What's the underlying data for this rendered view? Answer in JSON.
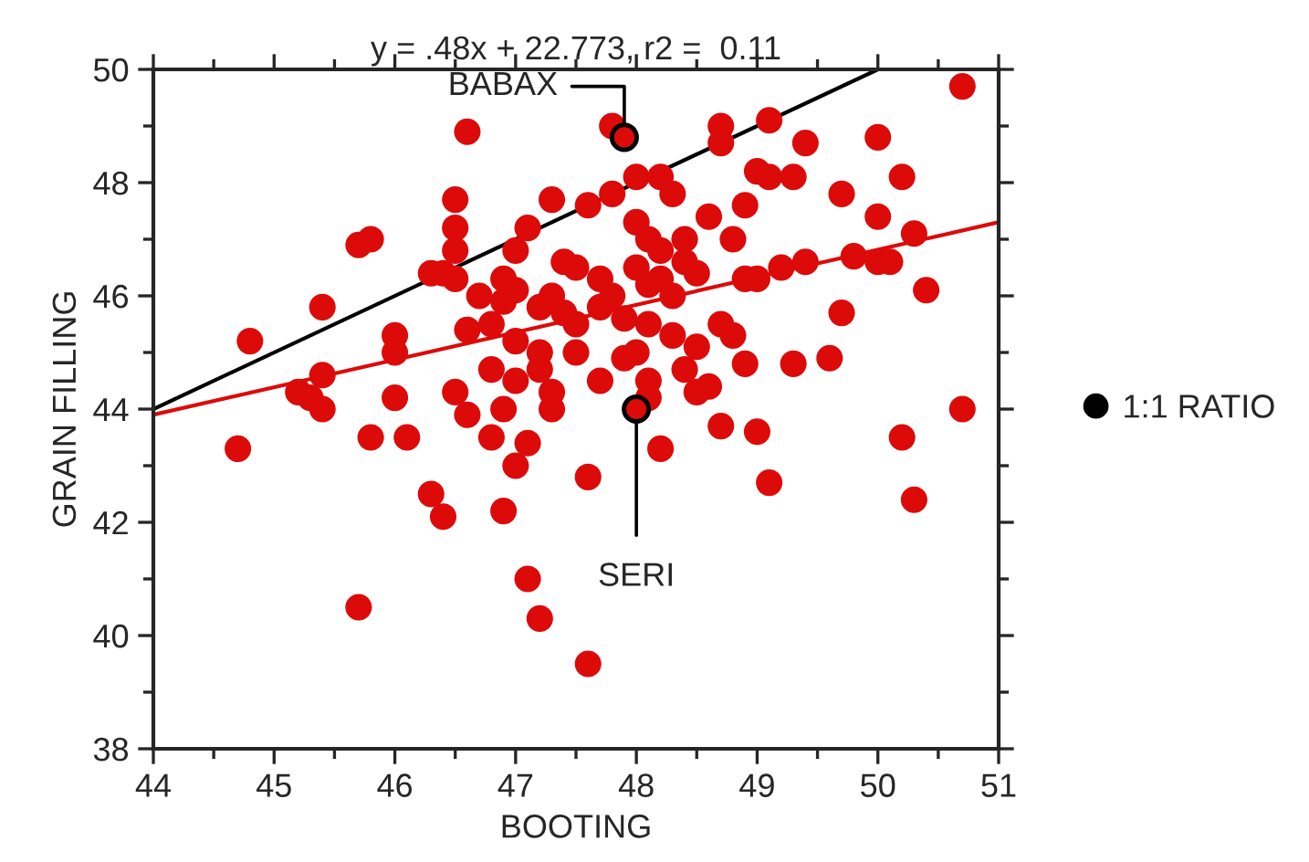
{
  "chart_data": {
    "type": "scatter",
    "title": "y = .48x + 22.773, r2 =  0.11",
    "xlabel": "BOOTING",
    "ylabel": "GRAIN FILLING",
    "xlim": [
      44,
      51
    ],
    "xticks": [
      44,
      45,
      46,
      47,
      48,
      49,
      50,
      51
    ],
    "ylim": [
      38,
      50
    ],
    "yticks": [
      38,
      40,
      42,
      44,
      46,
      48,
      50
    ],
    "grid": false,
    "legend": "right",
    "series": [
      {
        "marker": "circle",
        "color": "#dd0a0a",
        "x": [
          44.7,
          44.8,
          45.2,
          45.3,
          45.4,
          45.4,
          45.4,
          45.7,
          45.8,
          45.7,
          45.8,
          46.0,
          46.0,
          46.0,
          46.1,
          46.3,
          46.4,
          46.3,
          46.4,
          46.5,
          46.5,
          46.6,
          46.5,
          46.5,
          46.5,
          46.6,
          46.6,
          46.7,
          46.8,
          46.8,
          46.8,
          46.9,
          46.9,
          46.9,
          46.9,
          47.0,
          47.0,
          47.0,
          47.0,
          47.0,
          47.1,
          47.1,
          47.2,
          47.1,
          47.2,
          47.2,
          47.2,
          47.3,
          47.3,
          47.3,
          47.4,
          47.4,
          47.3,
          47.5,
          47.5,
          47.5,
          47.6,
          47.6,
          47.6,
          47.7,
          47.7,
          47.7,
          47.8,
          47.8,
          47.8,
          47.9,
          47.9,
          48.0,
          48.0,
          48.0,
          48.0,
          48.1,
          48.1,
          48.1,
          48.1,
          48.1,
          48.2,
          48.2,
          48.2,
          48.2,
          48.3,
          48.3,
          48.3,
          48.4,
          48.4,
          48.4,
          48.5,
          48.5,
          48.5,
          48.6,
          48.6,
          48.7,
          48.7,
          48.7,
          48.7,
          48.8,
          48.8,
          48.9,
          48.9,
          48.9,
          49.0,
          49.0,
          49.0,
          49.1,
          49.1,
          49.1,
          49.2,
          49.3,
          49.3,
          49.4,
          49.4,
          49.6,
          49.7,
          49.7,
          49.8,
          50.0,
          50.0,
          50.0,
          50.1,
          50.2,
          50.2,
          50.3,
          50.3,
          50.4,
          50.7,
          50.7
        ],
        "values": [
          43.3,
          45.2,
          44.3,
          44.2,
          44.0,
          44.6,
          45.8,
          46.9,
          47.0,
          40.5,
          43.5,
          45.3,
          45.0,
          44.2,
          43.5,
          42.5,
          42.1,
          46.4,
          46.4,
          46.3,
          46.8,
          48.9,
          47.7,
          47.2,
          44.3,
          43.9,
          45.4,
          46.0,
          43.5,
          44.7,
          45.5,
          42.2,
          44.0,
          45.9,
          46.3,
          44.5,
          45.2,
          46.1,
          43.0,
          46.8,
          47.2,
          41.0,
          40.3,
          43.4,
          44.7,
          45.0,
          45.8,
          46.0,
          44.3,
          44.0,
          45.7,
          46.6,
          47.7,
          46.5,
          45.5,
          45.0,
          42.8,
          47.6,
          39.5,
          46.3,
          45.8,
          44.5,
          46.0,
          47.8,
          49.0,
          45.6,
          44.9,
          45.0,
          46.5,
          47.3,
          48.1,
          47.0,
          46.2,
          45.5,
          44.5,
          44.2,
          46.3,
          46.8,
          48.1,
          43.3,
          47.8,
          46.0,
          45.3,
          44.7,
          47.0,
          46.6,
          44.3,
          45.1,
          46.4,
          47.4,
          44.4,
          48.7,
          49.0,
          45.5,
          43.7,
          47.0,
          45.3,
          47.6,
          46.3,
          44.8,
          43.6,
          48.2,
          46.3,
          49.1,
          42.7,
          48.1,
          46.5,
          48.1,
          44.8,
          48.7,
          46.6,
          44.9,
          47.8,
          45.7,
          46.7,
          48.8,
          47.4,
          46.6,
          46.6,
          48.1,
          43.5,
          47.1,
          42.4,
          46.1,
          49.7,
          44.0
        ]
      },
      {
        "marker": "circle",
        "color": "#000000",
        "x": [
          47.9,
          48.0
        ],
        "values": [
          48.8,
          44.0
        ]
      },
      {
        "type": "line",
        "name": "1:1 RATIO",
        "color": "#000000",
        "x": [
          44,
          50
        ],
        "values": [
          44,
          50
        ]
      },
      {
        "type": "line",
        "color": "#dd0a0a",
        "x": [
          44,
          51
        ],
        "values": [
          43.9,
          47.3
        ]
      }
    ],
    "annotations": [
      {
        "text": "BABAX",
        "x": 47.9,
        "y": 48.8
      },
      {
        "text": "SERI",
        "x": 48.0,
        "y": 44.0
      }
    ]
  }
}
